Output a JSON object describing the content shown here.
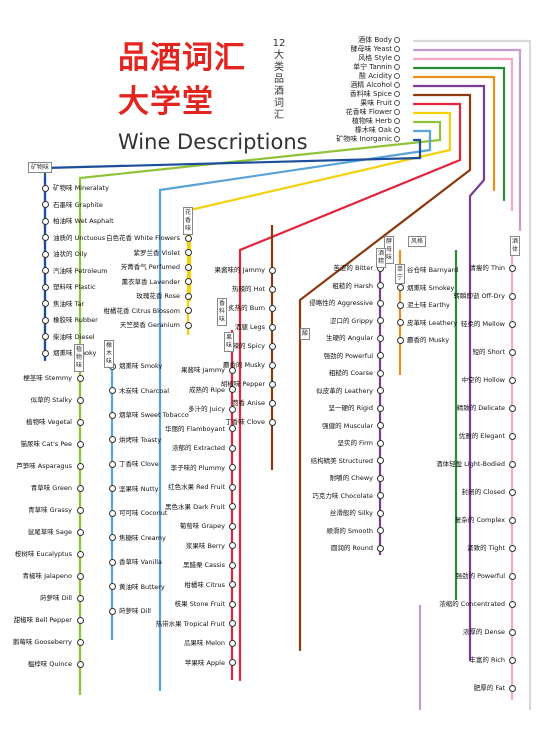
{
  "title": "品酒词汇大学堂",
  "title_lines": [
    "品酒词汇",
    "大学堂"
  ],
  "subtitle": "12大类品酒词汇",
  "english_title": "Wine Descriptions",
  "legend": [
    {
      "label": "酒体 Body",
      "color": "#d9d9d9"
    },
    {
      "label": "酵母味 Yeast",
      "color": "#c49ad0"
    },
    {
      "label": "风格 Style",
      "color": "#f7a8c4"
    },
    {
      "label": "单宁 Tannin",
      "color": "#2a8c3a"
    },
    {
      "label": "酸 Acidity",
      "color": "#e98f1a"
    },
    {
      "label": "酒精 Alcohol",
      "color": "#7b3a98"
    },
    {
      "label": "香料味 Spice",
      "color": "#8b3a0f"
    },
    {
      "label": "果味 Fruit",
      "color": "#e3243b"
    },
    {
      "label": "花香味 Flower",
      "color": "#f4d10a"
    },
    {
      "label": "植物味 Herb",
      "color": "#8fc43a"
    },
    {
      "label": "橡木味 Oak",
      "color": "#5aa2d8"
    },
    {
      "label": "矿物味 Inorganic",
      "color": "#1d4e9a"
    }
  ],
  "line_tags": {
    "inorganic": "矿物味",
    "flower": "花香味",
    "spice": "香料味",
    "fruit": "果味",
    "oak": "橡木味",
    "herb": "植物味",
    "yeast": "酵母味",
    "tannin": "单宁",
    "acidity": "酸",
    "style": "风格",
    "body": "酒体",
    "alcohol": "酒精"
  },
  "columns": {
    "inorganic": [
      {
        "name": "矿物味 Mineralaty",
        "note": ""
      },
      {
        "name": "石墨味 Graphite",
        "note": ""
      },
      {
        "name": "柏油味 Wet Asphalt",
        "note": ""
      },
      {
        "name": "油质的 Unctuous",
        "note": ""
      },
      {
        "name": "油状的 Oily",
        "note": ""
      },
      {
        "name": "汽油味 Petroleum",
        "note": ""
      },
      {
        "name": "塑料味 Plastic",
        "note": ""
      },
      {
        "name": "焦油味 Tar",
        "note": ""
      },
      {
        "name": "橡胶味 Rubber",
        "note": ""
      },
      {
        "name": "柴油味 Diesel",
        "note": ""
      },
      {
        "name": "烟熏味 Smoky",
        "note": ""
      }
    ],
    "herb": [
      {
        "name": "梗茎味 Stemmy",
        "note": ""
      },
      {
        "name": "似草的 Stalky",
        "note": ""
      },
      {
        "name": "植物味 Vegetal",
        "note": ""
      },
      {
        "name": "猫尿味 Cat's Pee",
        "note": ""
      },
      {
        "name": "芦笋味 Asparagus",
        "note": ""
      },
      {
        "name": "青草味 Green",
        "note": ""
      },
      {
        "name": "青草味 Grassy",
        "note": ""
      },
      {
        "name": "鼠尾草味 Sage",
        "note": ""
      },
      {
        "name": "桉树味 Eucalyptus",
        "note": ""
      },
      {
        "name": "青椒味 Jalapeno",
        "note": ""
      },
      {
        "name": "莳萝味 Dill",
        "note": ""
      },
      {
        "name": "甜椒味 Bell Pepper",
        "note": ""
      },
      {
        "name": "鹅莓味 Gooseberry",
        "note": ""
      },
      {
        "name": "榅桲味 Quince",
        "note": ""
      }
    ],
    "oak": [
      {
        "name": "烟熏味 Smoky",
        "note": ""
      },
      {
        "name": "木炭味 Charcoal",
        "note": ""
      },
      {
        "name": "烟草味 Sweet Tobacco",
        "note": ""
      },
      {
        "name": "烘烤味 Toasty",
        "note": ""
      },
      {
        "name": "丁香味 Clove",
        "note": ""
      },
      {
        "name": "坚果味 Nutty",
        "note": ""
      },
      {
        "name": "可可味 Coconut",
        "note": ""
      },
      {
        "name": "焦糖味 Creamy",
        "note": ""
      },
      {
        "name": "香草味 Vanilla",
        "note": ""
      },
      {
        "name": "黄油味 Buttery",
        "note": ""
      },
      {
        "name": "莳萝味 Dill",
        "note": ""
      }
    ],
    "flower": [
      {
        "name": "白色花香 White Flowers",
        "note": ""
      },
      {
        "name": "紫罗兰香 Violet",
        "note": ""
      },
      {
        "name": "芳菁香气 Perfumed",
        "note": ""
      },
      {
        "name": "薰衣草香 Lavender",
        "note": ""
      },
      {
        "name": "玫瑰花香 Rose",
        "note": ""
      },
      {
        "name": "柑橘花香 Citrus Blossom",
        "note": ""
      },
      {
        "name": "天竺葵香 Geranium",
        "note": ""
      }
    ],
    "fruit": [
      {
        "name": "果酱味 Jammy",
        "note": ""
      },
      {
        "name": "成熟的 Ripe",
        "note": ""
      },
      {
        "name": "多汁的 Juicy",
        "note": ""
      },
      {
        "name": "华丽的 Flamboyant",
        "note": ""
      },
      {
        "name": "浓郁的 Extracted",
        "note": ""
      },
      {
        "name": "李子味的 Plummy",
        "note": ""
      },
      {
        "name": "红色水果 Red Fruit",
        "note": ""
      },
      {
        "name": "黑色水果 Dark Fruit",
        "note": ""
      },
      {
        "name": "葡萄味 Grapey",
        "note": ""
      },
      {
        "name": "浆果味 Berry",
        "note": ""
      },
      {
        "name": "黑醋栗 Cassis",
        "note": ""
      },
      {
        "name": "柑橘味 Citrus",
        "note": ""
      },
      {
        "name": "核果 Stone Fruit",
        "note": ""
      },
      {
        "name": "热带水果 Tropical Fruit",
        "note": ""
      },
      {
        "name": "瓜果味 Melon",
        "note": ""
      },
      {
        "name": "苹果味 Apple",
        "note": ""
      }
    ],
    "spice": [
      {
        "name": "果酱味的 Jammy",
        "note": ""
      },
      {
        "name": "热辣的 Hot",
        "note": ""
      },
      {
        "name": "炙热的 Burn",
        "note": ""
      },
      {
        "name": "酒腿 Legs",
        "note": ""
      },
      {
        "name": "辛辣的 Spicy",
        "note": ""
      },
      {
        "name": "麝香的 Musky",
        "note": ""
      },
      {
        "name": "胡椒味 Pepper",
        "note": ""
      },
      {
        "name": "茴香 Anise",
        "note": ""
      },
      {
        "name": "丁香味 Clove",
        "note": ""
      }
    ],
    "alcohol": [
      {
        "name": "苦涩的 Bitter",
        "note": ""
      },
      {
        "name": "粗糙的 Harsh",
        "note": ""
      },
      {
        "name": "侵略性的 Aggressive",
        "note": ""
      },
      {
        "name": "涩口的 Grippy",
        "note": ""
      },
      {
        "name": "生硬的 Angular",
        "note": ""
      },
      {
        "name": "强劲的 Powerful",
        "note": ""
      },
      {
        "name": "粗糙的 Coarse",
        "note": ""
      },
      {
        "name": "似皮革的 Leathery",
        "note": ""
      },
      {
        "name": "坚一硬的 Rigid",
        "note": ""
      },
      {
        "name": "强健的 Muscular",
        "note": ""
      },
      {
        "name": "坚实的 Firm",
        "note": ""
      },
      {
        "name": "结构精美 Structured",
        "note": ""
      },
      {
        "name": "耐嚼的 Chewy",
        "note": ""
      },
      {
        "name": "巧克力味 Chocolate",
        "note": ""
      },
      {
        "name": "丝滑般的 Silky",
        "note": ""
      },
      {
        "name": "顺滑的 Smooth",
        "note": ""
      },
      {
        "name": "圆润的 Round",
        "note": ""
      }
    ],
    "yeast": [
      {
        "name": "谷仓味 Barnyard",
        "note": ""
      },
      {
        "name": "烟熏味 Smokey",
        "note": ""
      },
      {
        "name": "泥土味 Earthy",
        "note": ""
      },
      {
        "name": "皮革味 Leathery",
        "note": ""
      },
      {
        "name": "麝香的 Musky",
        "note": ""
      }
    ],
    "body": [
      {
        "name": "清瘦的 Thin",
        "note": ""
      },
      {
        "name": "转瞬即逝 Off-Dry",
        "note": ""
      },
      {
        "name": "轻柔的 Mellow",
        "note": ""
      },
      {
        "name": "短的 Short",
        "note": ""
      },
      {
        "name": "中空的 Hollow",
        "note": ""
      },
      {
        "name": "精致的 Delicate",
        "note": ""
      },
      {
        "name": "优雅的 Elegant",
        "note": ""
      },
      {
        "name": "酒体轻盈 Light-Bodied",
        "note": ""
      },
      {
        "name": "封闭的 Closed",
        "note": ""
      },
      {
        "name": "复杂的 Complex",
        "note": ""
      },
      {
        "name": "紧致的 Tight",
        "note": ""
      },
      {
        "name": "强劲的 Powerful",
        "note": ""
      },
      {
        "name": "浓缩的 Concentrated",
        "note": ""
      },
      {
        "name": "浓厚的 Dense",
        "note": ""
      },
      {
        "name": "丰富的 Rich",
        "note": ""
      },
      {
        "name": "肥厚的 Fat",
        "note": ""
      }
    ]
  }
}
